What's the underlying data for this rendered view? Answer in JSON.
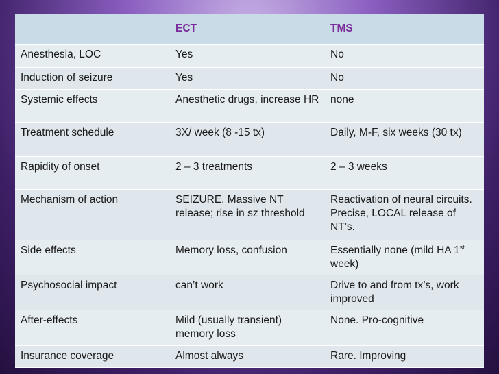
{
  "header": {
    "col1": "",
    "col2": "ECT",
    "col3": "TMS"
  },
  "rows": [
    {
      "label": "Anesthesia, LOC",
      "ect": "Yes",
      "tms": "No"
    },
    {
      "label": "Induction of seizure",
      "ect": "Yes",
      "tms": "No"
    },
    {
      "label": "Systemic effects",
      "ect": "Anesthetic drugs, increase HR",
      "tms": "none"
    },
    {
      "label": "Treatment schedule",
      "ect": "3X/ week (8 -15 tx)",
      "tms": "Daily, M-F, six weeks (30 tx)"
    },
    {
      "label": "Rapidity of onset",
      "ect": "2 – 3 treatments",
      "tms": "2 – 3 weeks"
    },
    {
      "label": "Mechanism of action",
      "ect": "SEIZURE.  Massive NT release; rise in sz threshold",
      "tms": "Reactivation of neural circuits. Precise, LOCAL release of NT’s."
    },
    {
      "label": "Side effects",
      "ect": "Memory loss, confusion",
      "tms_pre": "Essentially none (mild HA 1",
      "tms_sup": "st",
      "tms_post": " week)"
    },
    {
      "label": "Psychosocial impact",
      "ect": "can’t work",
      "tms": "Drive to and from tx’s, work improved"
    },
    {
      "label": "After-effects",
      "ect": "Mild (usually transient) memory loss",
      "tms": "None.  Pro-cognitive"
    },
    {
      "label": "Insurance coverage",
      "ect": "Almost always",
      "tms": "Rare.  Improving"
    }
  ]
}
